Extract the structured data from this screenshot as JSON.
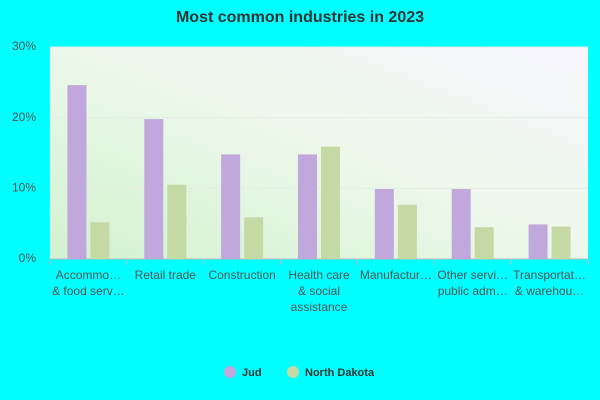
{
  "chart_data": {
    "type": "bar",
    "title": "Most common industries in 2023",
    "categories": [
      "Accommo…\n& food serv…",
      "Retail trade",
      "Construction",
      "Health care\n& social\nassistance",
      "Manufactur…",
      "Other servi…\npublic adm…",
      "Transportat…\n& warehou…"
    ],
    "series": [
      {
        "name": "Jud",
        "color": "#c0a8dc",
        "values": [
          24.6,
          19.8,
          14.8,
          14.8,
          9.9,
          9.9,
          4.9
        ]
      },
      {
        "name": "North Dakota",
        "color": "#c5d9a5",
        "values": [
          5.2,
          10.5,
          5.9,
          15.9,
          7.7,
          4.5,
          4.6
        ]
      }
    ],
    "ylim": [
      0,
      30
    ],
    "yticks": [
      {
        "value": 0,
        "label": "0%"
      },
      {
        "value": 10,
        "label": "10%"
      },
      {
        "value": 20,
        "label": "20%"
      },
      {
        "value": 30,
        "label": "30%"
      }
    ],
    "grid": true,
    "legend": "bottom"
  }
}
